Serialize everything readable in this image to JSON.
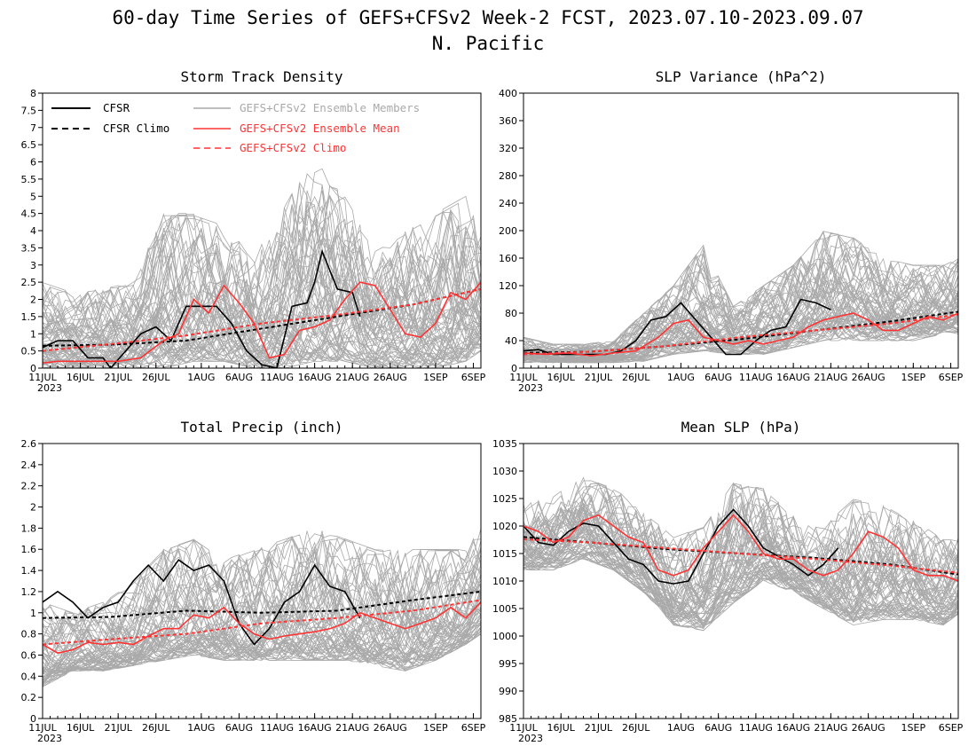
{
  "figure": {
    "title": "60-day Time Series of GEFS+CFSv2 Week-2 FCST, 2023.07.10-2023.09.07",
    "subtitle": "N. Pacific"
  },
  "colors": {
    "obs": "#000000",
    "members": "#a9a9a9",
    "ens_mean": "#ff3333",
    "ens_climo": "#ff3333"
  },
  "legend": {
    "cfsr": "CFSR",
    "cfsr_climo": "CFSR Climo",
    "members": "GEFS+CFSv2 Ensemble Members",
    "ens_mean": "GEFS+CFSv2 Ensemble Mean",
    "ens_climo": "GEFS+CFSv2 Climo"
  },
  "x_axis": {
    "year_label": "2023",
    "tick_labels": [
      "11JUL",
      "16JUL",
      "21JUL",
      "26JUL",
      "1AUG",
      "6AUG",
      "11AUG",
      "16AUG",
      "21AUG",
      "26AUG",
      "1SEP",
      "6SEP"
    ],
    "tick_days": [
      1,
      6,
      11,
      16,
      22,
      27,
      32,
      37,
      42,
      47,
      53,
      58
    ],
    "xlim": [
      1,
      59
    ]
  },
  "chart_data": [
    {
      "type": "line",
      "title": "Storm Track Density",
      "xlabel": "",
      "ylabel": "",
      "ylim": [
        0,
        8
      ],
      "yticks": [
        "0",
        "0.5",
        "1",
        "1.5",
        "2",
        "2.5",
        "3",
        "3.5",
        "4",
        "4.5",
        "5",
        "5.5",
        "6",
        "6.5",
        "7",
        "7.5",
        "8"
      ],
      "legend_position": "top",
      "members_band": {
        "x": [
          1,
          5,
          9,
          13,
          17,
          21,
          25,
          29,
          33,
          37,
          41,
          45,
          49,
          53,
          57,
          59
        ],
        "low": [
          0,
          0,
          0,
          0,
          0,
          0.2,
          0.2,
          0,
          0,
          0.2,
          0.2,
          0,
          0,
          0,
          0.2,
          0.5
        ],
        "high": [
          2.5,
          2.2,
          2.3,
          2.5,
          4.5,
          4.5,
          4.2,
          3.2,
          4.8,
          6.2,
          5.0,
          3.5,
          4.0,
          4.5,
          5.0,
          4.0
        ]
      },
      "series": [
        {
          "name": "CFSR",
          "role": "obs",
          "x": [
            1,
            3,
            5,
            7,
            9,
            10,
            12,
            14,
            16,
            18,
            20,
            22,
            24,
            26,
            28,
            30,
            32,
            34,
            36,
            37,
            38,
            40,
            42,
            43
          ],
          "y": [
            0.6,
            0.8,
            0.8,
            0.3,
            0.3,
            0,
            0.5,
            1.0,
            1.2,
            0.8,
            1.8,
            1.8,
            1.8,
            1.3,
            0.5,
            0.1,
            0,
            1.8,
            1.9,
            2.5,
            3.4,
            2.3,
            2.2,
            1.5
          ]
        },
        {
          "name": "CFSR Climo",
          "role": "obs_climo",
          "x": [
            1,
            10,
            20,
            30,
            40,
            50,
            59
          ],
          "y": [
            0.65,
            0.68,
            0.8,
            1.15,
            1.5,
            1.85,
            2.3
          ]
        },
        {
          "name": "GEFS+CFSv2 Ensemble Mean",
          "role": "ens_mean",
          "x": [
            1,
            3,
            5,
            8,
            11,
            14,
            17,
            19,
            21,
            23,
            25,
            27,
            29,
            31,
            33,
            35,
            37,
            39,
            41,
            43,
            45,
            47,
            49,
            51,
            53,
            55,
            57,
            59
          ],
          "y": [
            0.15,
            0.2,
            0.2,
            0.2,
            0.2,
            0.3,
            0.8,
            1.0,
            2.0,
            1.6,
            2.4,
            1.9,
            1.3,
            0.3,
            0.4,
            1.1,
            1.2,
            1.4,
            2.0,
            2.5,
            2.4,
            1.7,
            1.0,
            0.9,
            1.3,
            2.2,
            2.0,
            2.5
          ]
        },
        {
          "name": "GEFS+CFSv2 Climo",
          "role": "ens_climo",
          "x": [
            1,
            10,
            20,
            30,
            40,
            50,
            59
          ],
          "y": [
            0.5,
            0.7,
            0.95,
            1.3,
            1.55,
            1.85,
            2.3
          ]
        }
      ]
    },
    {
      "type": "line",
      "title": "SLP Variance (hPa^2)",
      "xlabel": "",
      "ylabel": "",
      "ylim": [
        0,
        400
      ],
      "yticks": [
        "0",
        "40",
        "80",
        "120",
        "160",
        "200",
        "240",
        "280",
        "320",
        "360",
        "400"
      ],
      "members_band": {
        "x": [
          1,
          5,
          9,
          13,
          17,
          21,
          25,
          29,
          33,
          37,
          41,
          45,
          49,
          53,
          57,
          59
        ],
        "low": [
          8,
          8,
          8,
          8,
          10,
          20,
          25,
          20,
          20,
          30,
          40,
          40,
          40,
          40,
          50,
          50
        ],
        "high": [
          45,
          35,
          35,
          40,
          80,
          120,
          180,
          90,
          120,
          150,
          200,
          190,
          160,
          150,
          150,
          160
        ]
      },
      "series": [
        {
          "name": "CFSR",
          "role": "obs",
          "x": [
            1,
            3,
            5,
            8,
            10,
            12,
            14,
            16,
            18,
            20,
            22,
            24,
            26,
            28,
            30,
            32,
            34,
            36,
            38,
            40,
            42
          ],
          "y": [
            25,
            27,
            20,
            20,
            20,
            20,
            25,
            40,
            70,
            75,
            95,
            70,
            45,
            20,
            20,
            40,
            55,
            60,
            100,
            95,
            85
          ]
        },
        {
          "name": "CFSR Climo",
          "role": "obs_climo",
          "x": [
            1,
            10,
            20,
            30,
            40,
            50,
            59
          ],
          "y": [
            22,
            24,
            32,
            42,
            55,
            68,
            82
          ]
        },
        {
          "name": "GEFS+CFSv2 Ensemble Mean",
          "role": "ens_mean",
          "x": [
            1,
            4,
            7,
            10,
            13,
            16,
            19,
            21,
            23,
            25,
            27,
            29,
            31,
            33,
            35,
            37,
            39,
            41,
            43,
            45,
            47,
            49,
            51,
            53,
            55,
            57,
            59
          ],
          "y": [
            22,
            20,
            22,
            18,
            22,
            25,
            45,
            65,
            70,
            45,
            40,
            35,
            40,
            35,
            40,
            45,
            60,
            70,
            75,
            80,
            70,
            55,
            55,
            65,
            75,
            70,
            80
          ]
        },
        {
          "name": "GEFS+CFSv2 Climo",
          "role": "ens_climo",
          "x": [
            1,
            10,
            20,
            30,
            40,
            50,
            59
          ],
          "y": [
            20,
            24,
            32,
            45,
            55,
            65,
            78
          ]
        }
      ]
    },
    {
      "type": "line",
      "title": "Total Precip (inch)",
      "xlabel": "",
      "ylabel": "",
      "ylim": [
        0,
        2.6
      ],
      "yticks": [
        "0",
        "0.2",
        "0.4",
        "0.6",
        "0.8",
        "1",
        "1.2",
        "1.4",
        "1.6",
        "1.8",
        "2",
        "2.2",
        "2.4",
        "2.6"
      ],
      "members_band": {
        "x": [
          1,
          5,
          9,
          13,
          17,
          21,
          25,
          29,
          33,
          37,
          41,
          45,
          49,
          53,
          57,
          59
        ],
        "low": [
          0.3,
          0.45,
          0.45,
          0.5,
          0.55,
          0.6,
          0.55,
          0.55,
          0.55,
          0.55,
          0.55,
          0.5,
          0.45,
          0.55,
          0.7,
          0.8
        ],
        "high": [
          1.1,
          1.0,
          1.1,
          1.3,
          1.6,
          1.7,
          1.5,
          1.6,
          1.7,
          1.8,
          1.7,
          1.6,
          1.6,
          1.6,
          1.6,
          1.8
        ]
      },
      "series": [
        {
          "name": "CFSR",
          "role": "obs",
          "x": [
            1,
            3,
            5,
            7,
            9,
            11,
            13,
            15,
            17,
            19,
            21,
            23,
            25,
            27,
            29,
            31,
            33,
            35,
            37,
            39,
            41,
            43
          ],
          "y": [
            1.1,
            1.2,
            1.1,
            0.95,
            1.05,
            1.1,
            1.3,
            1.45,
            1.3,
            1.5,
            1.4,
            1.45,
            1.3,
            0.9,
            0.7,
            0.85,
            1.1,
            1.2,
            1.45,
            1.25,
            1.2,
            0.95
          ]
        },
        {
          "name": "CFSR Climo",
          "role": "obs_climo",
          "x": [
            1,
            10,
            20,
            30,
            40,
            50,
            59
          ],
          "y": [
            0.95,
            0.96,
            1.02,
            1.0,
            1.02,
            1.12,
            1.2
          ]
        },
        {
          "name": "GEFS+CFSv2 Ensemble Mean",
          "role": "ens_mean",
          "x": [
            1,
            3,
            5,
            7,
            9,
            11,
            13,
            15,
            17,
            19,
            21,
            23,
            25,
            27,
            29,
            31,
            33,
            35,
            37,
            39,
            41,
            43,
            45,
            47,
            49,
            51,
            53,
            55,
            57,
            59
          ],
          "y": [
            0.7,
            0.62,
            0.65,
            0.72,
            0.7,
            0.72,
            0.7,
            0.78,
            0.85,
            0.85,
            0.98,
            0.95,
            1.05,
            0.9,
            0.8,
            0.75,
            0.78,
            0.8,
            0.82,
            0.85,
            0.9,
            1.0,
            0.95,
            0.9,
            0.85,
            0.9,
            0.95,
            1.05,
            0.95,
            1.1
          ]
        },
        {
          "name": "GEFS+CFSv2 Climo",
          "role": "ens_climo",
          "x": [
            1,
            10,
            20,
            30,
            40,
            50,
            59
          ],
          "y": [
            0.7,
            0.75,
            0.8,
            0.9,
            0.95,
            1.02,
            1.12
          ]
        }
      ]
    },
    {
      "type": "line",
      "title": "Mean SLP (hPa)",
      "xlabel": "",
      "ylabel": "",
      "ylim": [
        985,
        1035
      ],
      "yticks": [
        "985",
        "990",
        "995",
        "1000",
        "1005",
        "1010",
        "1015",
        "1020",
        "1025",
        "1030",
        "1035"
      ],
      "members_band": {
        "x": [
          1,
          5,
          9,
          13,
          17,
          21,
          25,
          29,
          33,
          37,
          41,
          45,
          49,
          53,
          57,
          59
        ],
        "low": [
          1012,
          1012,
          1014,
          1012,
          1008,
          1002,
          1001,
          1006,
          1010,
          1008,
          1005,
          1002,
          1003,
          1003,
          1002,
          1004
        ],
        "high": [
          1025,
          1026,
          1029,
          1027,
          1023,
          1018,
          1020,
          1028,
          1027,
          1022,
          1020,
          1025,
          1024,
          1021,
          1018,
          1018
        ]
      },
      "series": [
        {
          "name": "CFSR",
          "role": "obs",
          "x": [
            1,
            3,
            5,
            7,
            9,
            11,
            13,
            15,
            17,
            19,
            21,
            23,
            25,
            27,
            29,
            31,
            33,
            35,
            37,
            39,
            41,
            43
          ],
          "y": [
            1020,
            1017,
            1016.5,
            1019,
            1020.5,
            1020,
            1017,
            1014,
            1013,
            1010,
            1009.5,
            1010,
            1015,
            1020,
            1023,
            1020,
            1016,
            1014.5,
            1013,
            1011,
            1013,
            1016
          ]
        },
        {
          "name": "CFSR Climo",
          "role": "obs_climo",
          "x": [
            1,
            10,
            20,
            30,
            40,
            50,
            59
          ],
          "y": [
            1018,
            1017,
            1015.8,
            1015,
            1014.2,
            1013,
            1011.2
          ]
        },
        {
          "name": "GEFS+CFSv2 Ensemble Mean",
          "role": "ens_mean",
          "x": [
            1,
            3,
            5,
            7,
            9,
            11,
            13,
            15,
            17,
            19,
            21,
            23,
            25,
            27,
            29,
            31,
            33,
            35,
            37,
            39,
            41,
            43,
            45,
            47,
            49,
            51,
            53,
            55,
            57,
            59
          ],
          "y": [
            1020,
            1019,
            1017,
            1018,
            1021,
            1022,
            1020,
            1018,
            1017,
            1012,
            1011,
            1012,
            1016,
            1019,
            1022,
            1019,
            1015,
            1014,
            1014,
            1012,
            1011,
            1012,
            1015,
            1019,
            1018,
            1016,
            1012,
            1011,
            1011,
            1010
          ]
        },
        {
          "name": "GEFS+CFSv2 Climo",
          "role": "ens_climo",
          "x": [
            1,
            10,
            20,
            30,
            40,
            50,
            59
          ],
          "y": [
            1017.6,
            1017,
            1016,
            1015,
            1014,
            1012.8,
            1011.5
          ]
        }
      ]
    }
  ]
}
